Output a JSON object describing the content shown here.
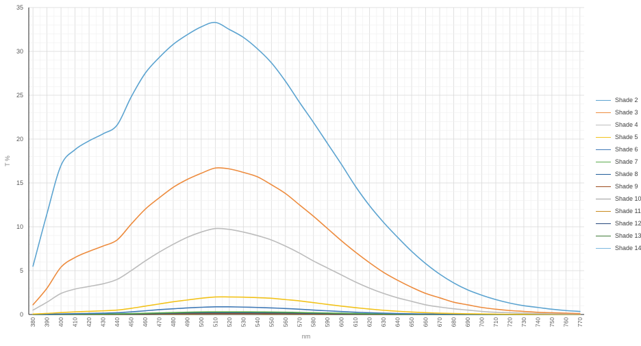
{
  "chart_data": {
    "type": "line",
    "title": "",
    "xlabel": "nm",
    "ylabel": "T %",
    "xlim": [
      377,
      773
    ],
    "ylim": [
      0,
      35
    ],
    "grid": true,
    "legend_placement": "right",
    "x_ticks": [
      "380",
      "390",
      "400",
      "410",
      "420",
      "430",
      "440",
      "450",
      "460",
      "470",
      "480",
      "490",
      "500",
      "510",
      "520",
      "530",
      "540",
      "550",
      "560",
      "570",
      "580",
      "590",
      "600",
      "610",
      "620",
      "630",
      "640",
      "650",
      "660",
      "670",
      "680",
      "690",
      "700",
      "710",
      "720",
      "730",
      "740",
      "750",
      "760",
      "770"
    ],
    "y_ticks": [
      "0",
      "5",
      "10",
      "15",
      "20",
      "25",
      "30",
      "35"
    ],
    "x": [
      380,
      390,
      400,
      410,
      420,
      430,
      440,
      450,
      460,
      470,
      480,
      490,
      500,
      510,
      520,
      530,
      540,
      550,
      560,
      570,
      580,
      590,
      600,
      610,
      620,
      630,
      640,
      650,
      660,
      670,
      680,
      690,
      700,
      710,
      720,
      730,
      740,
      750,
      760,
      770
    ],
    "series": [
      {
        "name": "Shade 2",
        "color": "#5ba3d0",
        "values": [
          5.5,
          11.5,
          17.0,
          18.8,
          19.8,
          20.6,
          21.6,
          24.8,
          27.5,
          29.3,
          30.8,
          31.9,
          32.8,
          33.3,
          32.5,
          31.6,
          30.3,
          28.7,
          26.6,
          24.2,
          21.9,
          19.5,
          17.1,
          14.6,
          12.4,
          10.5,
          8.8,
          7.2,
          5.8,
          4.6,
          3.6,
          2.8,
          2.2,
          1.7,
          1.3,
          1.0,
          0.8,
          0.6,
          0.45,
          0.35
        ]
      },
      {
        "name": "Shade 3",
        "color": "#ed8b3d",
        "values": [
          1.1,
          3.0,
          5.4,
          6.5,
          7.2,
          7.8,
          8.5,
          10.3,
          12.0,
          13.3,
          14.5,
          15.4,
          16.1,
          16.7,
          16.6,
          16.2,
          15.7,
          14.8,
          13.8,
          12.5,
          11.2,
          9.8,
          8.4,
          7.1,
          5.9,
          4.8,
          3.9,
          3.1,
          2.4,
          1.9,
          1.4,
          1.1,
          0.8,
          0.6,
          0.45,
          0.35,
          0.25,
          0.2,
          0.15,
          0.1
        ]
      },
      {
        "name": "Shade 4",
        "color": "#bcbcbc",
        "values": [
          0.5,
          1.4,
          2.4,
          2.9,
          3.2,
          3.5,
          4.0,
          5.0,
          6.1,
          7.1,
          8.0,
          8.8,
          9.4,
          9.8,
          9.7,
          9.4,
          9.0,
          8.5,
          7.8,
          7.0,
          6.1,
          5.3,
          4.5,
          3.7,
          3.0,
          2.4,
          1.9,
          1.5,
          1.1,
          0.85,
          0.65,
          0.5,
          0.35,
          0.25,
          0.2,
          0.15,
          0.1,
          0.08,
          0.06,
          0.05
        ]
      },
      {
        "name": "Shade 5",
        "color": "#f2c21a",
        "values": [
          0.05,
          0.12,
          0.22,
          0.3,
          0.36,
          0.42,
          0.5,
          0.7,
          0.95,
          1.2,
          1.45,
          1.65,
          1.85,
          2.0,
          2.0,
          1.98,
          1.92,
          1.85,
          1.7,
          1.55,
          1.35,
          1.15,
          0.95,
          0.78,
          0.62,
          0.48,
          0.37,
          0.28,
          0.21,
          0.15,
          0.11,
          0.08,
          0.06,
          0.04,
          0.03,
          0.02,
          0.02,
          0.01,
          0.01,
          0.01
        ]
      },
      {
        "name": "Shade 6",
        "color": "#3f79b7",
        "values": [
          0.01,
          0.03,
          0.06,
          0.09,
          0.12,
          0.15,
          0.2,
          0.3,
          0.42,
          0.55,
          0.65,
          0.75,
          0.82,
          0.87,
          0.87,
          0.84,
          0.8,
          0.75,
          0.68,
          0.6,
          0.5,
          0.42,
          0.34,
          0.26,
          0.2,
          0.15,
          0.11,
          0.08,
          0.06,
          0.04,
          0.03,
          0.02,
          0.01,
          0.01,
          0.01,
          0,
          0,
          0,
          0,
          0
        ]
      },
      {
        "name": "Shade 7",
        "color": "#5aaa4a",
        "values": [
          0,
          0.01,
          0.02,
          0.03,
          0.04,
          0.05,
          0.07,
          0.1,
          0.14,
          0.18,
          0.22,
          0.26,
          0.29,
          0.3,
          0.3,
          0.3,
          0.29,
          0.28,
          0.26,
          0.23,
          0.2,
          0.17,
          0.14,
          0.11,
          0.08,
          0.06,
          0.04,
          0.03,
          0.02,
          0.01,
          0.01,
          0,
          0,
          0,
          0,
          0,
          0,
          0,
          0,
          0
        ]
      },
      {
        "name": "Shade 8",
        "color": "#1f5c99",
        "values": [
          0,
          0,
          0.01,
          0.02,
          0.03,
          0.04,
          0.05,
          0.07,
          0.1,
          0.13,
          0.16,
          0.18,
          0.2,
          0.21,
          0.21,
          0.21,
          0.2,
          0.19,
          0.18,
          0.16,
          0.14,
          0.12,
          0.1,
          0.08,
          0.06,
          0.04,
          0.03,
          0.02,
          0.01,
          0.01,
          0,
          0,
          0,
          0,
          0,
          0,
          0,
          0,
          0,
          0
        ]
      },
      {
        "name": "Shade 9",
        "color": "#9b4a1c",
        "values": [
          0,
          0,
          0,
          0.01,
          0.01,
          0.02,
          0.03,
          0.04,
          0.05,
          0.07,
          0.08,
          0.09,
          0.1,
          0.1,
          0.1,
          0.1,
          0.1,
          0.09,
          0.09,
          0.08,
          0.07,
          0.06,
          0.05,
          0.04,
          0.03,
          0.02,
          0.01,
          0.01,
          0,
          0,
          0,
          0,
          0,
          0,
          0,
          0,
          0,
          0,
          0,
          0
        ]
      },
      {
        "name": "Shade 10",
        "color": "#9c9c9c",
        "values": [
          0,
          0,
          0,
          0,
          0.01,
          0.01,
          0.01,
          0.02,
          0.03,
          0.03,
          0.04,
          0.05,
          0.05,
          0.05,
          0.05,
          0.05,
          0.05,
          0.05,
          0.04,
          0.04,
          0.03,
          0.03,
          0.02,
          0.02,
          0.01,
          0.01,
          0.01,
          0,
          0,
          0,
          0,
          0,
          0,
          0,
          0,
          0,
          0,
          0,
          0,
          0
        ]
      },
      {
        "name": "Shade 11",
        "color": "#c88a1c",
        "values": [
          0,
          0,
          0,
          0,
          0,
          0,
          0,
          0.01,
          0.01,
          0.02,
          0.02,
          0.02,
          0.03,
          0.03,
          0.03,
          0.03,
          0.03,
          0.02,
          0.02,
          0.02,
          0.02,
          0.01,
          0.01,
          0.01,
          0.01,
          0,
          0,
          0,
          0,
          0,
          0,
          0,
          0,
          0,
          0,
          0,
          0,
          0,
          0,
          0
        ]
      },
      {
        "name": "Shade 12",
        "color": "#24467a",
        "values": [
          0,
          0,
          0,
          0,
          0,
          0,
          0,
          0,
          0,
          0.01,
          0.01,
          0.01,
          0.01,
          0.01,
          0.01,
          0.01,
          0.01,
          0.01,
          0.01,
          0.01,
          0.01,
          0.01,
          0,
          0,
          0,
          0,
          0,
          0,
          0,
          0,
          0,
          0,
          0,
          0,
          0,
          0,
          0,
          0,
          0,
          0
        ]
      },
      {
        "name": "Shade 13",
        "color": "#3d7a36",
        "values": [
          0,
          0,
          0,
          0,
          0,
          0,
          0,
          0,
          0,
          0,
          0,
          0,
          0,
          0.01,
          0.01,
          0.01,
          0.01,
          0,
          0,
          0,
          0,
          0,
          0,
          0,
          0,
          0,
          0,
          0,
          0,
          0,
          0,
          0,
          0,
          0,
          0,
          0,
          0,
          0,
          0,
          0
        ]
      },
      {
        "name": "Shade 14",
        "color": "#7ab8df",
        "values": [
          0,
          0,
          0,
          0,
          0,
          0,
          0,
          0,
          0,
          0,
          0,
          0,
          0,
          0,
          0,
          0,
          0,
          0,
          0,
          0,
          0,
          0,
          0,
          0,
          0,
          0,
          0,
          0,
          0,
          0,
          0,
          0,
          0,
          0,
          0,
          0,
          0,
          0,
          0,
          0
        ]
      }
    ]
  }
}
